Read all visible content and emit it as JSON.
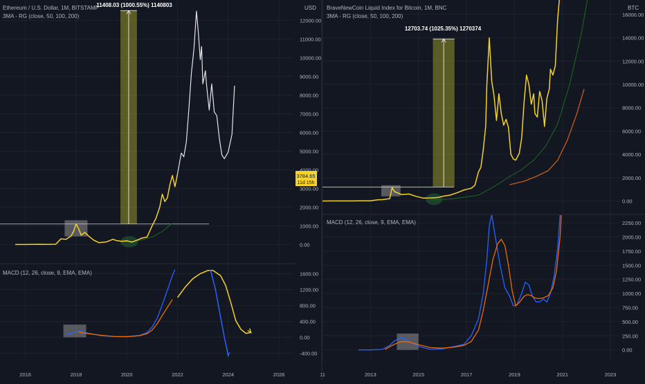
{
  "colors": {
    "background": "#131722",
    "grid": "#1e222d",
    "axis_text": "#b2b5be",
    "price": "#f5d229",
    "macd": "#2962ff",
    "signal": "#ef6c00",
    "ma_green": "#1b5e20",
    "ma_orange": "#d4621a",
    "white_projection": "#e6e6e6",
    "highlight_box": "rgba(170,170,170,0.45)",
    "measure_fill": "rgba(150,150,40,0.55)",
    "badge": "#f5d229"
  },
  "left_chart": {
    "title": "Ethereum / U.S. Dollar, 1M, BITSTAMP",
    "indicator": "3MA - RG (close, 50, 100, 200)",
    "currency": "USD",
    "measure_label": "11408.03 (1000.55%) 1140803",
    "macd_label": "MACD (12, 26, close, 9, EMA, EMA)",
    "badge": {
      "price": "3784.65",
      "countdown": "11d 15h"
    },
    "chart_data": {
      "type": "line",
      "x_ticks": [
        "2016",
        "2018",
        "2020",
        "2022",
        "2024",
        "2026"
      ],
      "y_ticks": [
        "0.00",
        "1000.00",
        "2000.00",
        "3000.00",
        "4000.00",
        "5000.00",
        "6000.00",
        "7000.00",
        "8000.00",
        "9000.00",
        "10000.00",
        "11000.00",
        "12000.00"
      ],
      "ylim": [
        -800,
        12800
      ],
      "xlim": [
        2015.0,
        2026.6
      ],
      "price_series": [
        [
          2015.6,
          0
        ],
        [
          2016.0,
          1
        ],
        [
          2016.5,
          12
        ],
        [
          2016.9,
          8
        ],
        [
          2017.2,
          15
        ],
        [
          2017.4,
          300
        ],
        [
          2017.6,
          280
        ],
        [
          2017.8,
          450
        ],
        [
          2017.9,
          700
        ],
        [
          2018.0,
          1100
        ],
        [
          2018.1,
          850
        ],
        [
          2018.2,
          500
        ],
        [
          2018.35,
          650
        ],
        [
          2018.5,
          450
        ],
        [
          2018.7,
          230
        ],
        [
          2018.9,
          100
        ],
        [
          2019.2,
          140
        ],
        [
          2019.45,
          280
        ],
        [
          2019.6,
          210
        ],
        [
          2019.8,
          170
        ],
        [
          2020.0,
          200
        ],
        [
          2020.2,
          130
        ],
        [
          2020.4,
          230
        ],
        [
          2020.6,
          350
        ],
        [
          2020.8,
          400
        ],
        [
          2021.0,
          1000
        ],
        [
          2021.15,
          1400
        ],
        [
          2021.3,
          2000
        ],
        [
          2021.4,
          2700
        ],
        [
          2021.5,
          2300
        ],
        [
          2021.6,
          2500
        ],
        [
          2021.7,
          3200
        ],
        [
          2021.8,
          3700
        ],
        [
          2021.9,
          3100
        ],
        [
          2022.0,
          3784
        ]
      ],
      "projection_series": [
        [
          2022.0,
          3784
        ],
        [
          2022.15,
          4900
        ],
        [
          2022.25,
          4700
        ],
        [
          2022.35,
          5500
        ],
        [
          2022.45,
          7300
        ],
        [
          2022.55,
          9200
        ],
        [
          2022.65,
          10500
        ],
        [
          2022.75,
          12500
        ],
        [
          2022.82,
          11400
        ],
        [
          2022.9,
          9900
        ],
        [
          2022.95,
          10600
        ],
        [
          2023.0,
          8600
        ],
        [
          2023.1,
          9300
        ],
        [
          2023.15,
          8500
        ],
        [
          2023.25,
          7200
        ],
        [
          2023.35,
          8600
        ],
        [
          2023.45,
          7100
        ],
        [
          2023.55,
          6900
        ],
        [
          2023.65,
          5700
        ],
        [
          2023.75,
          4800
        ],
        [
          2023.85,
          4600
        ],
        [
          2024.0,
          4950
        ],
        [
          2024.15,
          5900
        ],
        [
          2024.25,
          8500
        ]
      ],
      "ma_green": [
        [
          2019.8,
          150
        ],
        [
          2020.2,
          160
        ],
        [
          2020.6,
          250
        ],
        [
          2021.0,
          400
        ],
        [
          2021.4,
          700
        ],
        [
          2021.8,
          1150
        ]
      ],
      "reference_level": 1100,
      "measure": {
        "x0": 2019.75,
        "x1": 2020.4,
        "y0": 1100,
        "y1": 12530
      },
      "highlight": {
        "x0": 2017.55,
        "x1": 2018.45,
        "y0": 430,
        "y1": 1300
      },
      "ellipse": {
        "cx": 2020.1,
        "cy": 150,
        "rx": 0.35,
        "ry": 300
      },
      "macd_ylim": [
        -600,
        1800
      ],
      "macd_y_ticks": [
        "-400.00",
        "0.00",
        "400.00",
        "800.00",
        "1200.00",
        "1600.00"
      ],
      "macd_line": [
        [
          2017.6,
          70
        ],
        [
          2017.8,
          100
        ],
        [
          2018.0,
          140
        ],
        [
          2018.2,
          150
        ],
        [
          2018.5,
          100
        ],
        [
          2019.0,
          40
        ],
        [
          2019.5,
          20
        ],
        [
          2020.0,
          20
        ],
        [
          2020.5,
          45
        ],
        [
          2020.8,
          120
        ],
        [
          2021.0,
          260
        ],
        [
          2021.2,
          480
        ],
        [
          2021.4,
          820
        ],
        [
          2021.6,
          1180
        ],
        [
          2021.8,
          1550
        ],
        [
          2021.9,
          1700
        ]
      ],
      "signal_line": [
        [
          2018.1,
          130
        ],
        [
          2018.5,
          90
        ],
        [
          2019.0,
          50
        ],
        [
          2019.5,
          20
        ],
        [
          2020.0,
          15
        ],
        [
          2020.5,
          40
        ],
        [
          2020.8,
          90
        ],
        [
          2021.0,
          180
        ],
        [
          2021.2,
          340
        ],
        [
          2021.5,
          650
        ],
        [
          2021.8,
          950
        ]
      ],
      "macd_proj_signal": [
        [
          2022.0,
          1000
        ],
        [
          2022.3,
          1260
        ],
        [
          2022.6,
          1470
        ],
        [
          2022.9,
          1600
        ],
        [
          2023.2,
          1680
        ],
        [
          2023.4,
          1680
        ],
        [
          2023.7,
          1550
        ],
        [
          2023.9,
          1300
        ],
        [
          2024.1,
          880
        ],
        [
          2024.3,
          420
        ],
        [
          2024.5,
          200
        ],
        [
          2024.7,
          100
        ],
        [
          2024.9,
          120
        ]
      ],
      "macd_proj_line": [
        [
          2023.3,
          1700
        ],
        [
          2023.5,
          1200
        ],
        [
          2023.7,
          500
        ],
        [
          2023.85,
          0
        ],
        [
          2023.95,
          -300
        ],
        [
          2024.0,
          -460
        ],
        [
          2024.05,
          -380
        ]
      ],
      "macd_highlight": {
        "x0": 2017.5,
        "x1": 2018.4,
        "y0": 0,
        "y1": 320
      }
    }
  },
  "right_chart": {
    "title": "BraveNewCoin Liquid Index for Bitcoin, 1M, BNC",
    "indicator": "3MA - RG (close, 50, 100, 200)",
    "currency": "BTC",
    "measure_label": "12703.74 (1025.35%) 1270374",
    "macd_label": "MACD (12, 26, close, 9, EMA, EMA)",
    "chart_data": {
      "type": "line",
      "x_ticks": [
        "11",
        "2013",
        "2015",
        "2017",
        "2019",
        "2021",
        "2023"
      ],
      "y_ticks": [
        "0.00",
        "2000.00",
        "4000.00",
        "6000.00",
        "8000.00",
        "10000.00",
        "12000.00",
        "14000.00",
        "16000.00"
      ],
      "ylim": [
        -800,
        17000
      ],
      "xlim": [
        2011.0,
        2023.4
      ],
      "price_series": [
        [
          2011.0,
          0
        ],
        [
          2011.5,
          5
        ],
        [
          2012.0,
          6
        ],
        [
          2012.5,
          10
        ],
        [
          2013.0,
          20
        ],
        [
          2013.3,
          100
        ],
        [
          2013.5,
          120
        ],
        [
          2013.8,
          200
        ],
        [
          2013.9,
          1150
        ],
        [
          2014.0,
          800
        ],
        [
          2014.3,
          550
        ],
        [
          2014.6,
          600
        ],
        [
          2014.9,
          400
        ],
        [
          2015.2,
          250
        ],
        [
          2015.5,
          260
        ],
        [
          2015.8,
          300
        ],
        [
          2016.0,
          400
        ],
        [
          2016.3,
          500
        ],
        [
          2016.6,
          700
        ],
        [
          2016.9,
          950
        ],
        [
          2017.0,
          1000
        ],
        [
          2017.2,
          1100
        ],
        [
          2017.35,
          1350
        ],
        [
          2017.5,
          2500
        ],
        [
          2017.6,
          2900
        ],
        [
          2017.7,
          4400
        ],
        [
          2017.8,
          6400
        ],
        [
          2017.85,
          10000
        ],
        [
          2017.95,
          14000
        ],
        [
          2018.05,
          10300
        ],
        [
          2018.15,
          9000
        ],
        [
          2018.25,
          6900
        ],
        [
          2018.35,
          9200
        ],
        [
          2018.45,
          7500
        ],
        [
          2018.55,
          6500
        ],
        [
          2018.65,
          7000
        ],
        [
          2018.75,
          6300
        ],
        [
          2018.85,
          4000
        ],
        [
          2018.95,
          3600
        ],
        [
          2019.05,
          3500
        ],
        [
          2019.2,
          4100
        ],
        [
          2019.3,
          5400
        ],
        [
          2019.4,
          8500
        ],
        [
          2019.5,
          10800
        ],
        [
          2019.6,
          10000
        ],
        [
          2019.7,
          8300
        ],
        [
          2019.8,
          9200
        ],
        [
          2019.85,
          7500
        ],
        [
          2019.95,
          7200
        ],
        [
          2020.05,
          9400
        ],
        [
          2020.15,
          8600
        ],
        [
          2020.25,
          6400
        ],
        [
          2020.35,
          8800
        ],
        [
          2020.45,
          9600
        ],
        [
          2020.5,
          11300
        ],
        [
          2020.6,
          10800
        ],
        [
          2020.7,
          11600
        ],
        [
          2020.8,
          15600
        ],
        [
          2020.9,
          18000
        ]
      ],
      "ma_green": [
        [
          2015.5,
          100
        ],
        [
          2016.5,
          200
        ],
        [
          2017.5,
          500
        ],
        [
          2018.2,
          1300
        ],
        [
          2018.8,
          2100
        ],
        [
          2019.3,
          2700
        ],
        [
          2019.8,
          3500
        ],
        [
          2020.3,
          4700
        ],
        [
          2020.8,
          6600
        ],
        [
          2021.3,
          10000
        ],
        [
          2021.8,
          14500
        ],
        [
          2022.1,
          18000
        ]
      ],
      "ma_orange": [
        [
          2018.8,
          1400
        ],
        [
          2019.4,
          1700
        ],
        [
          2019.9,
          2100
        ],
        [
          2020.4,
          2600
        ],
        [
          2020.8,
          3500
        ],
        [
          2021.2,
          5200
        ],
        [
          2021.6,
          7500
        ],
        [
          2021.9,
          9600
        ]
      ],
      "reference_level": 1200,
      "measure": {
        "x0": 2015.6,
        "x1": 2016.5,
        "y0": 1200,
        "y1": 13900
      },
      "highlight": {
        "x0": 2013.45,
        "x1": 2014.25,
        "y0": 400,
        "y1": 1350
      },
      "ellipse": {
        "cx": 2015.65,
        "cy": 150,
        "rx": 0.35,
        "ry": 500
      },
      "macd_ylim": [
        -200,
        2350
      ],
      "macd_y_ticks": [
        "0.00",
        "250.00",
        "500.00",
        "750.00",
        "1000.00",
        "1250.00",
        "1500.00",
        "1750.00",
        "2000.00",
        "2250.00"
      ],
      "macd_line": [
        [
          2012.5,
          0
        ],
        [
          2013.0,
          0
        ],
        [
          2013.5,
          10
        ],
        [
          2013.8,
          80
        ],
        [
          2014.0,
          160
        ],
        [
          2014.3,
          220
        ],
        [
          2014.6,
          150
        ],
        [
          2015.0,
          60
        ],
        [
          2015.5,
          10
        ],
        [
          2016.0,
          20
        ],
        [
          2016.5,
          60
        ],
        [
          2016.9,
          100
        ],
        [
          2017.2,
          250
        ],
        [
          2017.5,
          550
        ],
        [
          2017.7,
          1000
        ],
        [
          2017.85,
          1600
        ],
        [
          2017.95,
          2200
        ],
        [
          2018.05,
          2400
        ],
        [
          2018.2,
          2000
        ],
        [
          2018.4,
          1500
        ],
        [
          2018.6,
          1100
        ],
        [
          2018.8,
          950
        ],
        [
          2018.95,
          780
        ],
        [
          2019.1,
          800
        ],
        [
          2019.3,
          1000
        ],
        [
          2019.45,
          1200
        ],
        [
          2019.6,
          1150
        ],
        [
          2019.75,
          950
        ],
        [
          2019.9,
          850
        ],
        [
          2020.05,
          850
        ],
        [
          2020.2,
          900
        ],
        [
          2020.35,
          850
        ],
        [
          2020.5,
          1000
        ],
        [
          2020.65,
          1300
        ],
        [
          2020.8,
          1800
        ],
        [
          2020.9,
          2400
        ]
      ],
      "signal_line": [
        [
          2013.6,
          10
        ],
        [
          2014.0,
          100
        ],
        [
          2014.3,
          150
        ],
        [
          2014.6,
          140
        ],
        [
          2015.0,
          90
        ],
        [
          2015.5,
          40
        ],
        [
          2016.0,
          30
        ],
        [
          2016.5,
          50
        ],
        [
          2016.9,
          80
        ],
        [
          2017.2,
          150
        ],
        [
          2017.5,
          350
        ],
        [
          2017.7,
          700
        ],
        [
          2017.9,
          1150
        ],
        [
          2018.1,
          1600
        ],
        [
          2018.3,
          1880
        ],
        [
          2018.45,
          1960
        ],
        [
          2018.6,
          1850
        ],
        [
          2018.75,
          1500
        ],
        [
          2018.9,
          1050
        ],
        [
          2019.05,
          780
        ],
        [
          2019.2,
          840
        ],
        [
          2019.4,
          950
        ],
        [
          2019.55,
          980
        ],
        [
          2019.7,
          960
        ],
        [
          2019.85,
          920
        ],
        [
          2020.0,
          910
        ],
        [
          2020.2,
          920
        ],
        [
          2020.4,
          960
        ],
        [
          2020.6,
          1100
        ],
        [
          2020.75,
          1400
        ],
        [
          2020.9,
          2000
        ],
        [
          2020.95,
          2400
        ]
      ],
      "macd_highlight": {
        "x0": 2014.1,
        "x1": 2015.0,
        "y0": 0,
        "y1": 290
      }
    }
  }
}
